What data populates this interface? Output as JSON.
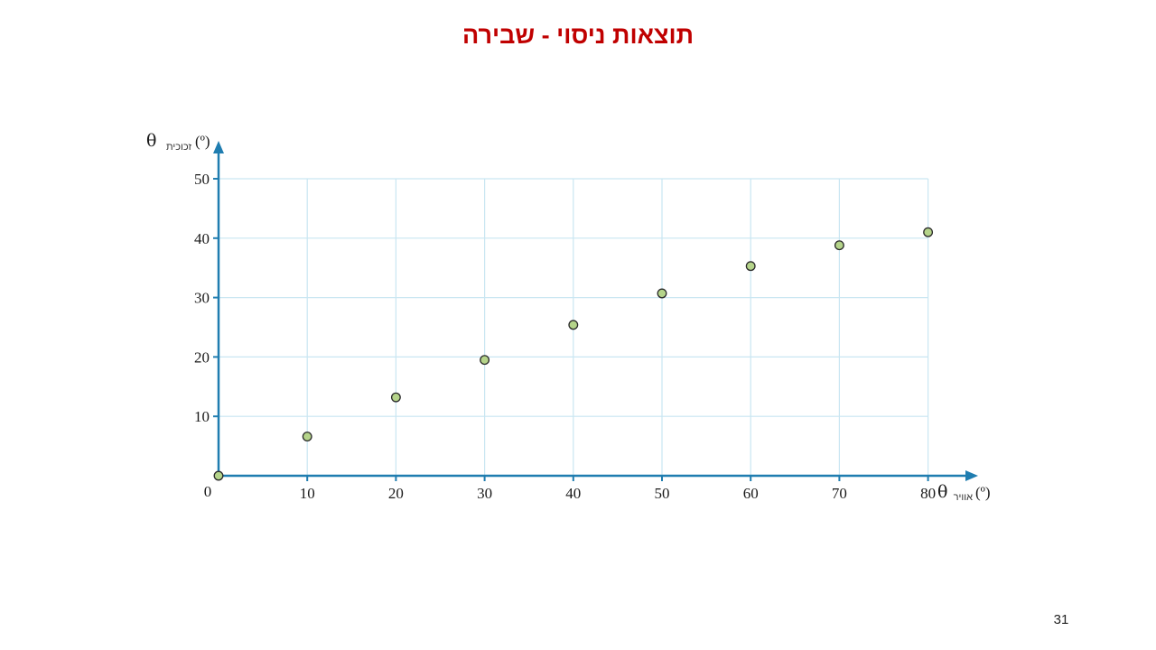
{
  "slide": {
    "title": "תוצאות ניסוי - שבירה",
    "page_number": "31"
  },
  "chart_data": {
    "type": "scatter",
    "title": "",
    "xlabel": {
      "symbol": "θ",
      "subscript": "אוויר",
      "unit": "(º)"
    },
    "ylabel": {
      "symbol": "θ",
      "subscript": "זכוכית",
      "unit": "(º)"
    },
    "xlim": [
      0,
      80
    ],
    "ylim": [
      0,
      50
    ],
    "x_ticks": [
      10,
      20,
      30,
      40,
      50,
      60,
      70,
      80
    ],
    "y_ticks": [
      10,
      20,
      30,
      40,
      50
    ],
    "origin_label": "0",
    "grid": true,
    "legend": "none",
    "points": [
      {
        "x": 0,
        "y": 0
      },
      {
        "x": 10,
        "y": 6.6
      },
      {
        "x": 20,
        "y": 13.2
      },
      {
        "x": 30,
        "y": 19.5
      },
      {
        "x": 40,
        "y": 25.4
      },
      {
        "x": 50,
        "y": 30.7
      },
      {
        "x": 60,
        "y": 35.3
      },
      {
        "x": 70,
        "y": 38.8
      },
      {
        "x": 80,
        "y": 41.0
      }
    ],
    "colors": {
      "axis": "#1f7db0",
      "grid": "#c9e6f2",
      "point_fill": "#b5d48a",
      "point_stroke": "#2a2a2a"
    }
  }
}
